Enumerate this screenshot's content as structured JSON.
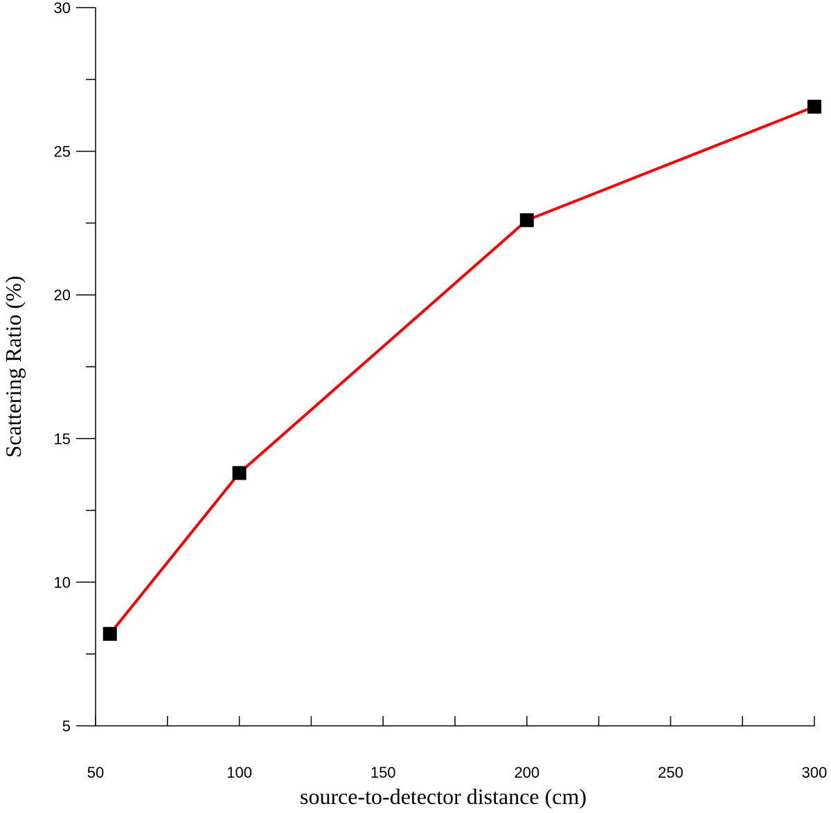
{
  "chart_data": {
    "type": "line",
    "x_label": "source-to-detector distance (cm)",
    "y_label": "Scattering Ratio (%)",
    "x": [
      55,
      100,
      200,
      300
    ],
    "series": [
      {
        "color": "#ff0000",
        "marker_color": "#000000",
        "values": [
          8.2,
          13.8,
          22.6,
          26.55
        ]
      }
    ],
    "xlim": [
      50,
      300
    ],
    "xticks": [
      50,
      100,
      150,
      200,
      250,
      300
    ],
    "xticks_minor": [
      75,
      125,
      175,
      225,
      275
    ],
    "ylim": [
      5,
      30
    ],
    "yticks": [
      5,
      10,
      15,
      20,
      25,
      30
    ],
    "yticks_minor": [
      7.5,
      12.5,
      17.5,
      22.5,
      27.5
    ]
  }
}
